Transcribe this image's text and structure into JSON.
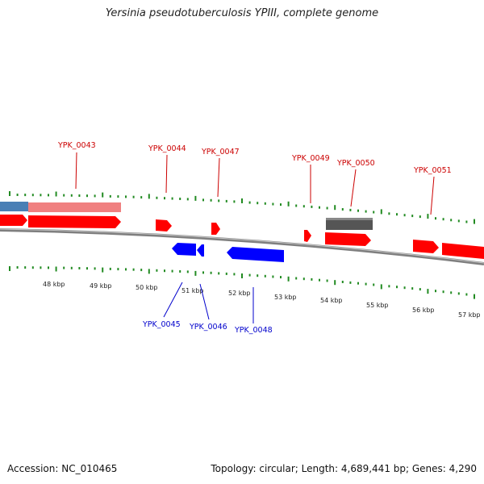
{
  "title": "Yersinia pseudotuberculosis YPIII, complete genome",
  "footer": {
    "accession": "Accession: NC_010465",
    "summary": "Topology: circular; Length: 4,689,441 bp; Genes: 4,290"
  },
  "colors": {
    "forward_gene": "#ff0000",
    "reverse_gene": "#0000ff",
    "pseudo_gene": "#555555",
    "highlight_red": "#f08080",
    "highlight_blue": "#4a7fb5",
    "tick": "#228b22",
    "backbone": "#7f7f7f",
    "forward_label": "#cc0000",
    "reverse_label": "#0000cc"
  },
  "scale_labels": [
    "48 kbp",
    "49 kbp",
    "50 kbp",
    "51 kbp",
    "52 kbp",
    "53 kbp",
    "54 kbp",
    "55 kbp",
    "56 kbp",
    "57 kbp"
  ],
  "gene_labels_top": [
    "YPK_0043",
    "YPK_0044",
    "YPK_0047",
    "YPK_0049",
    "YPK_0050",
    "YPK_0051"
  ],
  "gene_labels_bottom": [
    "YPK_0045",
    "YPK_0046",
    "YPK_0048"
  ]
}
